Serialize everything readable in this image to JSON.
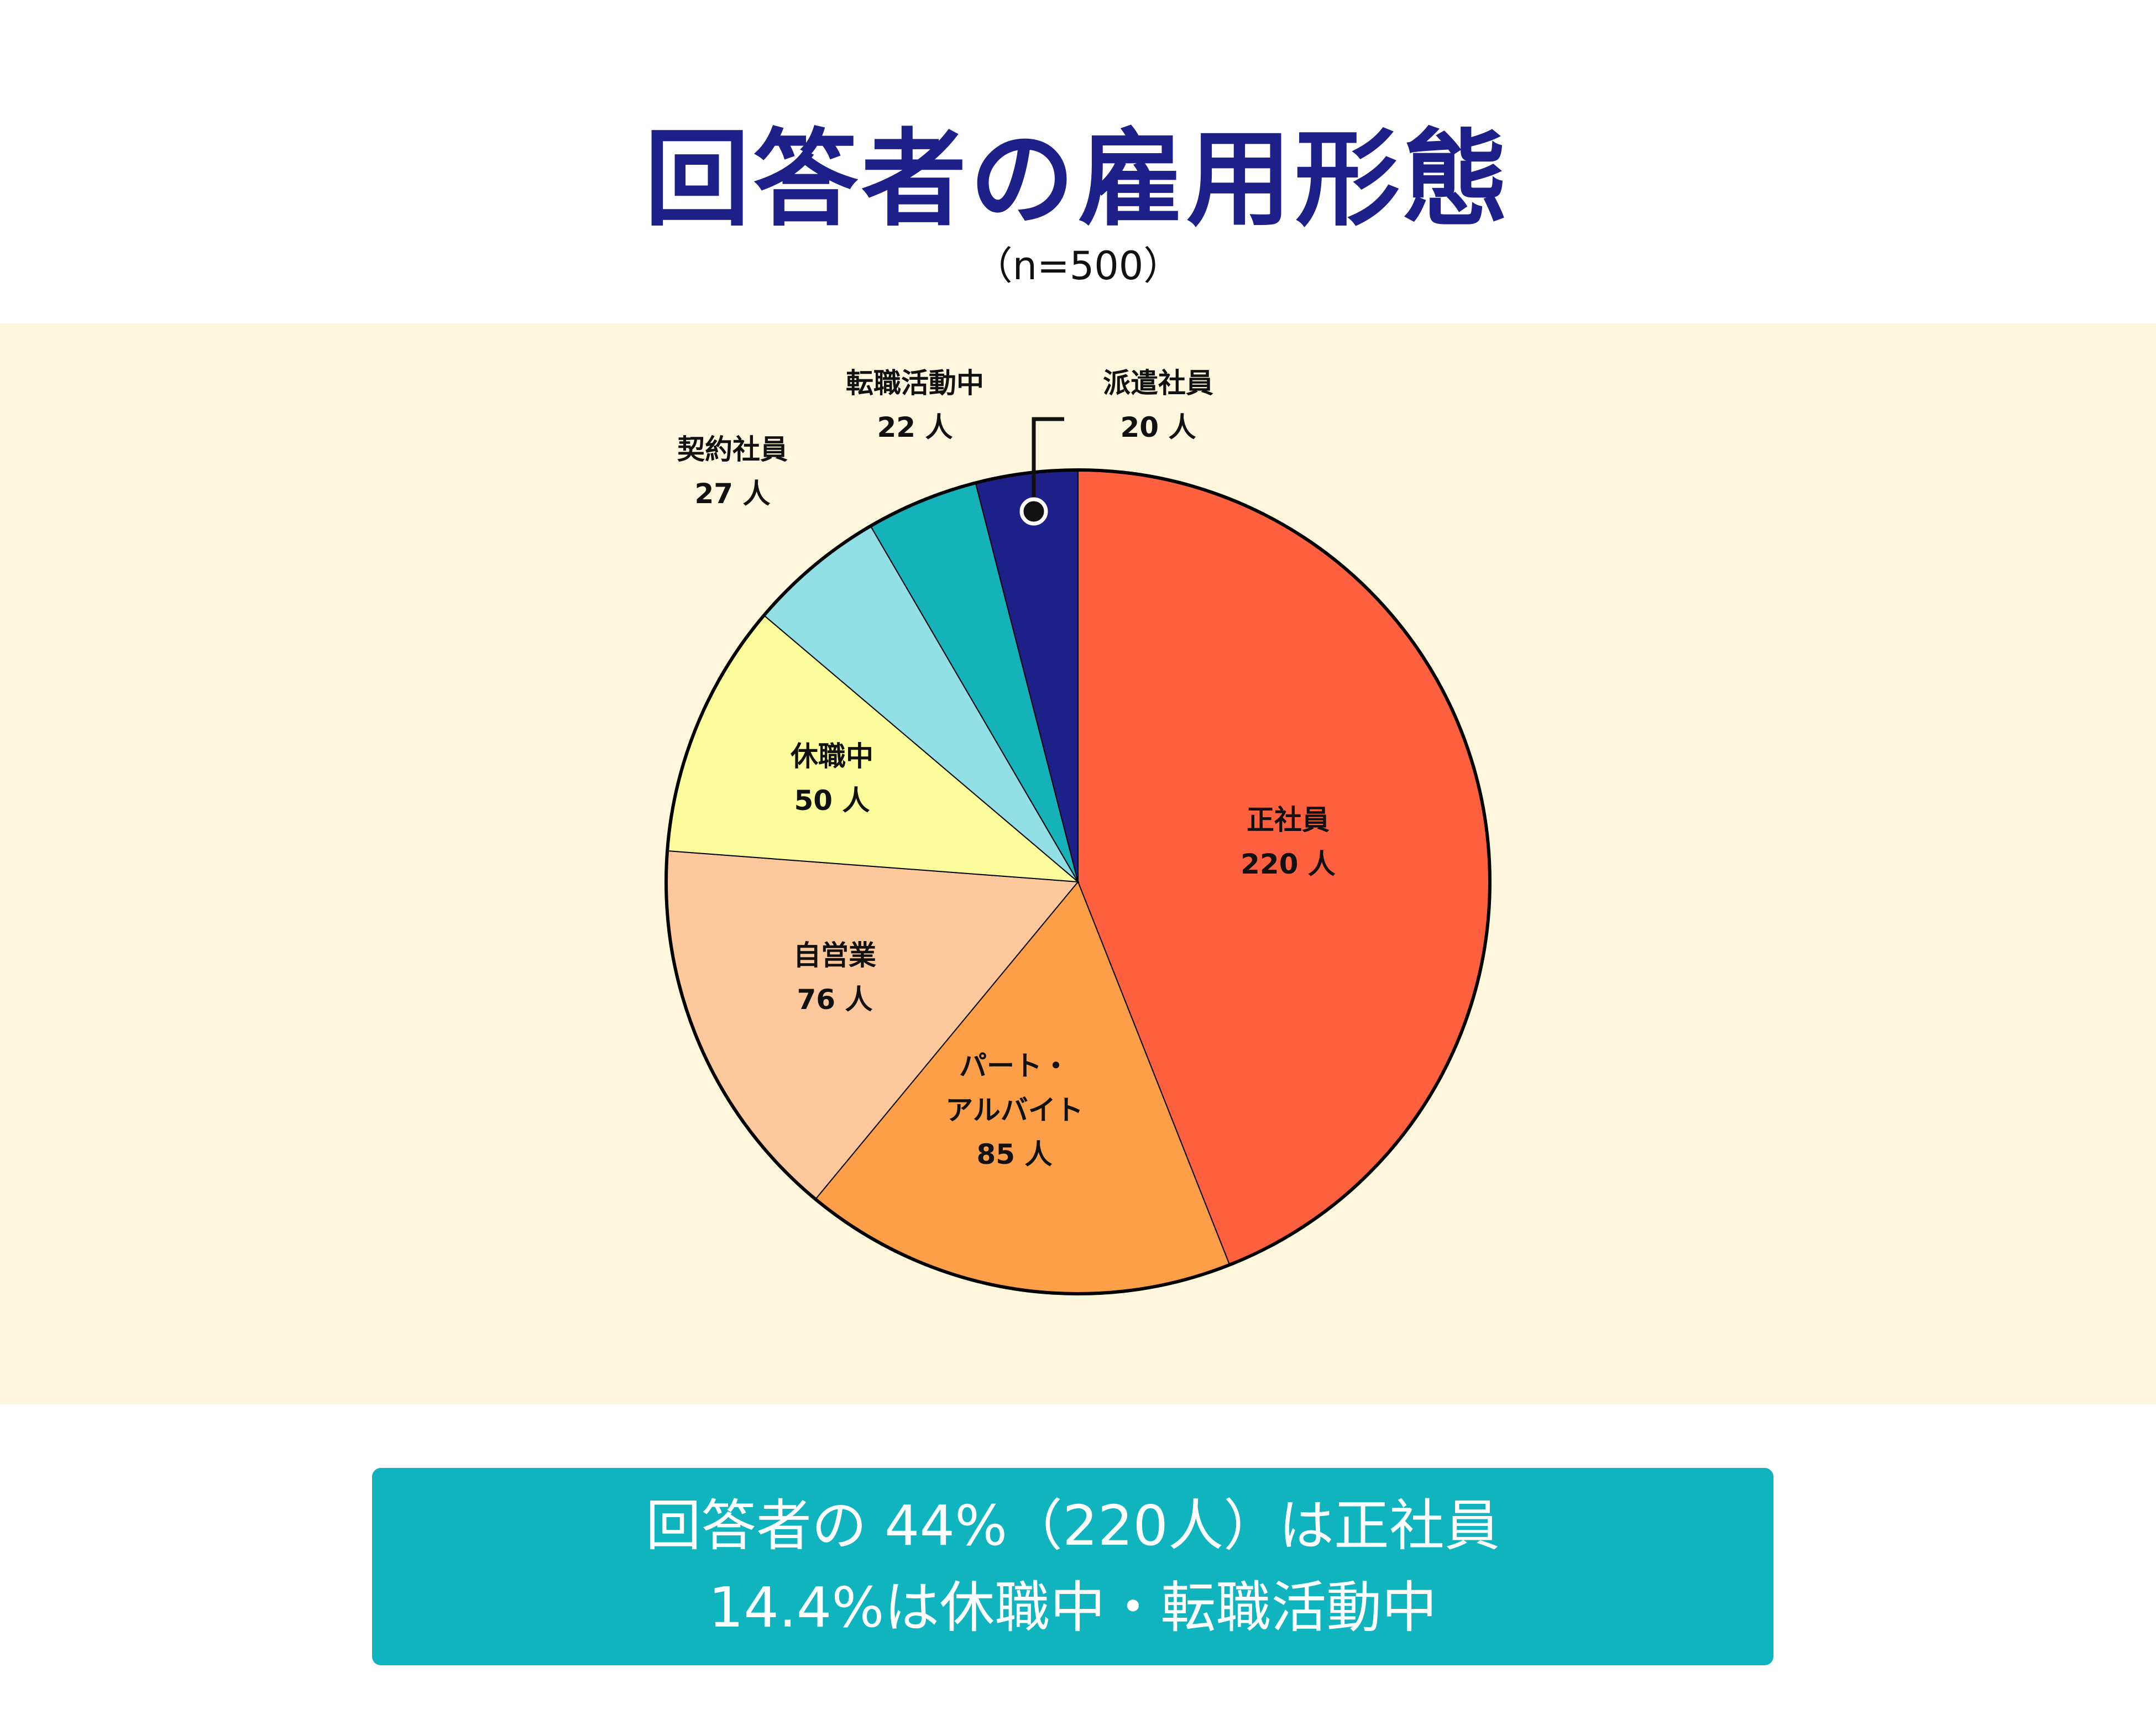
{
  "title": "回答者の雇用形態",
  "subtitle": "（n=500）",
  "colors": {
    "title": "#1c2088",
    "chart_background": "#fdf7dd",
    "summary_background": "#10b4bf",
    "summary_text": "#ffffff"
  },
  "chart_data": {
    "type": "pie",
    "total": 500,
    "start": "12 o'clock",
    "direction": "clockwise",
    "slices": [
      {
        "label": "正社員",
        "value": 220,
        "value_label": "220 人",
        "color": "#ff6140"
      },
      {
        "label": "パート・アルバイト",
        "label_lines": [
          "パート・",
          "アルバイト"
        ],
        "value": 85,
        "value_label": "85 人",
        "color": "#fd9e48"
      },
      {
        "label": "自営業",
        "value": 76,
        "value_label": "76 人",
        "color": "#fdc89c"
      },
      {
        "label": "休職中",
        "value": 50,
        "value_label": "50 人",
        "color": "#fbfd9c"
      },
      {
        "label": "契約社員",
        "value": 27,
        "value_label": "27 人",
        "color": "#92dfe6"
      },
      {
        "label": "転職活動中",
        "value": 22,
        "value_label": "22 人",
        "color": "#15b2ba"
      },
      {
        "label": "派遣社員",
        "value": 20,
        "value_label": "20 人",
        "color": "#1c2088"
      }
    ]
  },
  "summary": {
    "line1": "回答者の 44%（220人）は正社員",
    "line2": "14.4%は休職中・転職活動中"
  }
}
